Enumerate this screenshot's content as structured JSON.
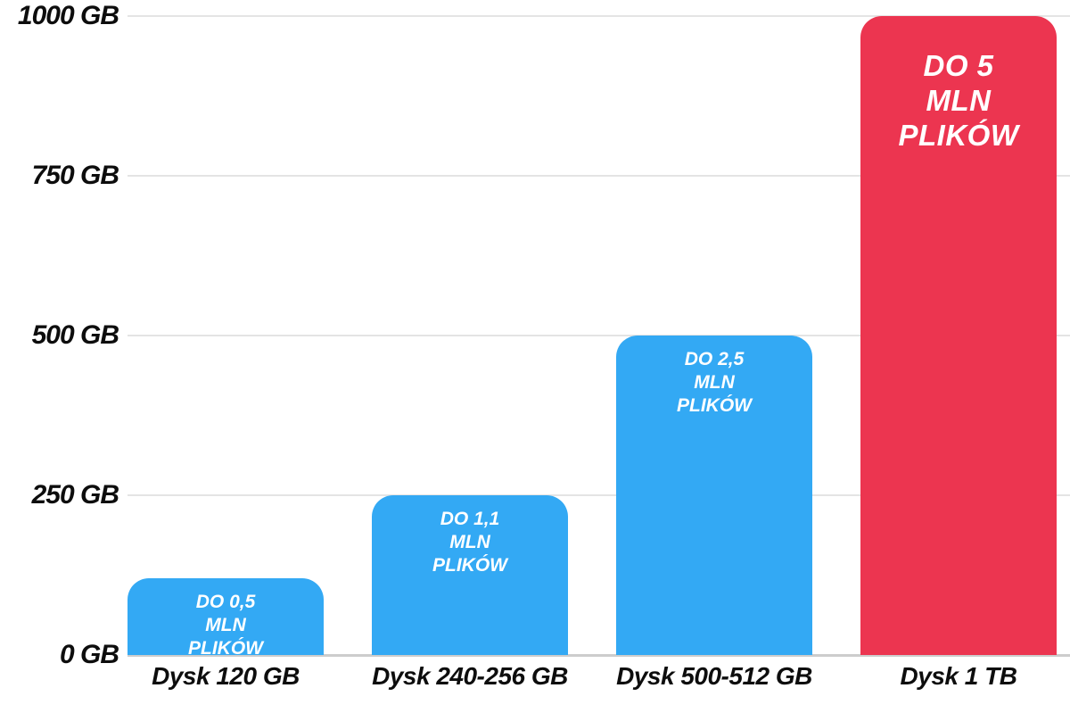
{
  "chart_data": {
    "type": "bar",
    "title": "",
    "xlabel": "",
    "ylabel": "",
    "categories": [
      "Dysk 120 GB",
      "Dysk 240-256 GB",
      "Dysk 500-512 GB",
      "Dysk 1 TB"
    ],
    "values": [
      120,
      250,
      500,
      1000
    ],
    "value_unit": "GB",
    "files_mln": [
      0.5,
      1.1,
      2.5,
      5
    ],
    "bar_labels": [
      [
        "DO 0,5",
        "MLN",
        "PLIKÓW"
      ],
      [
        "DO 1,1",
        "MLN",
        "PLIKÓW"
      ],
      [
        "DO 2,5",
        "MLN",
        "PLIKÓW"
      ],
      [
        "DO 5",
        "MLN",
        "PLIKÓW"
      ]
    ],
    "bar_colors": [
      "#33A9F4",
      "#33A9F4",
      "#33A9F4",
      "#EC3550"
    ],
    "highlight_index": 3,
    "yticks": [
      {
        "value": 0,
        "label": "0 GB"
      },
      {
        "value": 250,
        "label": "250 GB"
      },
      {
        "value": 500,
        "label": "500 GB"
      },
      {
        "value": 750,
        "label": "750 GB"
      },
      {
        "value": 1000,
        "label": "1000 GB"
      }
    ],
    "ylim": [
      0,
      1000
    ],
    "grid": true,
    "legend": false,
    "colors": {
      "bar_default": "#33A9F4",
      "bar_highlight": "#EC3550",
      "grid": "#E4E4E4",
      "axis": "#CDCDCD",
      "text": "#0D0D0D",
      "bar_label_text": "#FFFFFF",
      "background": "#FFFFFF"
    }
  }
}
